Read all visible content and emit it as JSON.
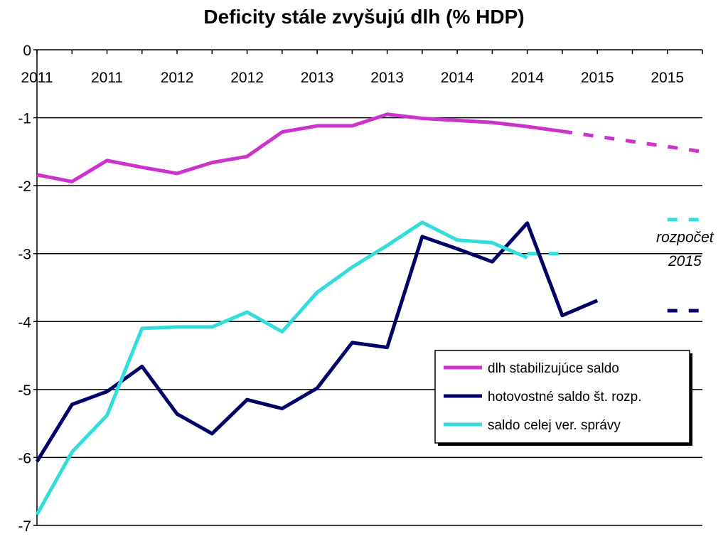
{
  "title": "Deficity stále zvyšujú dlh (% HDP)",
  "chart_data": {
    "type": "line",
    "title": "Deficity stále zvyšujú dlh (% HDP)",
    "xlabel": "",
    "ylabel": "",
    "ylim": [
      -7,
      0
    ],
    "yticks": [
      0,
      -1,
      -2,
      -3,
      -4,
      -5,
      -6,
      -7
    ],
    "x_tick_labels": [
      "2011",
      "2011",
      "2012",
      "2012",
      "2013",
      "2013",
      "2014",
      "2014",
      "2015",
      "2015"
    ],
    "x_range": [
      0,
      19
    ],
    "grid": "horizontal",
    "legend_position": "lower-right",
    "series": [
      {
        "name": "dlh stabilizujúce saldo",
        "color": "#cc33cc",
        "x": [
          0,
          1,
          2,
          3,
          4,
          5,
          6,
          7,
          8,
          9,
          10,
          11,
          12,
          13,
          14,
          15
        ],
        "values": [
          -1.84,
          -1.94,
          -1.63,
          -1.73,
          -1.82,
          -1.66,
          -1.57,
          -1.21,
          -1.12,
          -1.12,
          -0.95,
          -1.01,
          -1.04,
          -1.07,
          -1.13,
          -1.2
        ]
      },
      {
        "name": "hotovostné saldo št. rozp.",
        "color": "#000066",
        "x": [
          0,
          1,
          2,
          3,
          4,
          5,
          6,
          7,
          8,
          9,
          10,
          11,
          12,
          13,
          14,
          15,
          16
        ],
        "values": [
          -6.06,
          -5.22,
          -5.03,
          -4.66,
          -5.36,
          -5.65,
          -5.15,
          -5.28,
          -4.98,
          -4.31,
          -4.38,
          -2.75,
          -2.93,
          -3.12,
          -2.55,
          -3.91,
          -3.69
        ]
      },
      {
        "name": "saldo celej ver. správy",
        "color": "#33dddd",
        "x": [
          0,
          1,
          2,
          3,
          4,
          5,
          6,
          7,
          8,
          9,
          10,
          11,
          12,
          13,
          14
        ],
        "values": [
          -6.84,
          -5.92,
          -5.38,
          -4.1,
          -4.08,
          -4.08,
          -3.86,
          -4.15,
          -3.57,
          -3.2,
          -2.88,
          -2.54,
          -2.8,
          -2.84,
          -3.06
        ]
      }
    ],
    "projections": [
      {
        "series": "dlh stabilizujúce saldo",
        "color": "#cc33cc",
        "x": [
          15,
          19
        ],
        "values": [
          -1.2,
          -1.5
        ]
      },
      {
        "series": "saldo celej ver. správy",
        "color": "#33dddd",
        "x": [
          14,
          15
        ],
        "values": [
          -3.0,
          -3.0
        ]
      },
      {
        "series": "saldo celej ver. správy",
        "color": "#33dddd",
        "x": [
          18,
          19
        ],
        "values": [
          -2.5,
          -2.5
        ]
      },
      {
        "series": "hotovostné saldo št. rozp.",
        "color": "#000066",
        "x": [
          18,
          19
        ],
        "values": [
          -3.84,
          -3.84
        ]
      }
    ],
    "annotations": [
      {
        "text": "rozpočet",
        "x": 18.5,
        "y": -2.83
      },
      {
        "text": "2015",
        "x": 18.5,
        "y": -3.18
      }
    ]
  }
}
